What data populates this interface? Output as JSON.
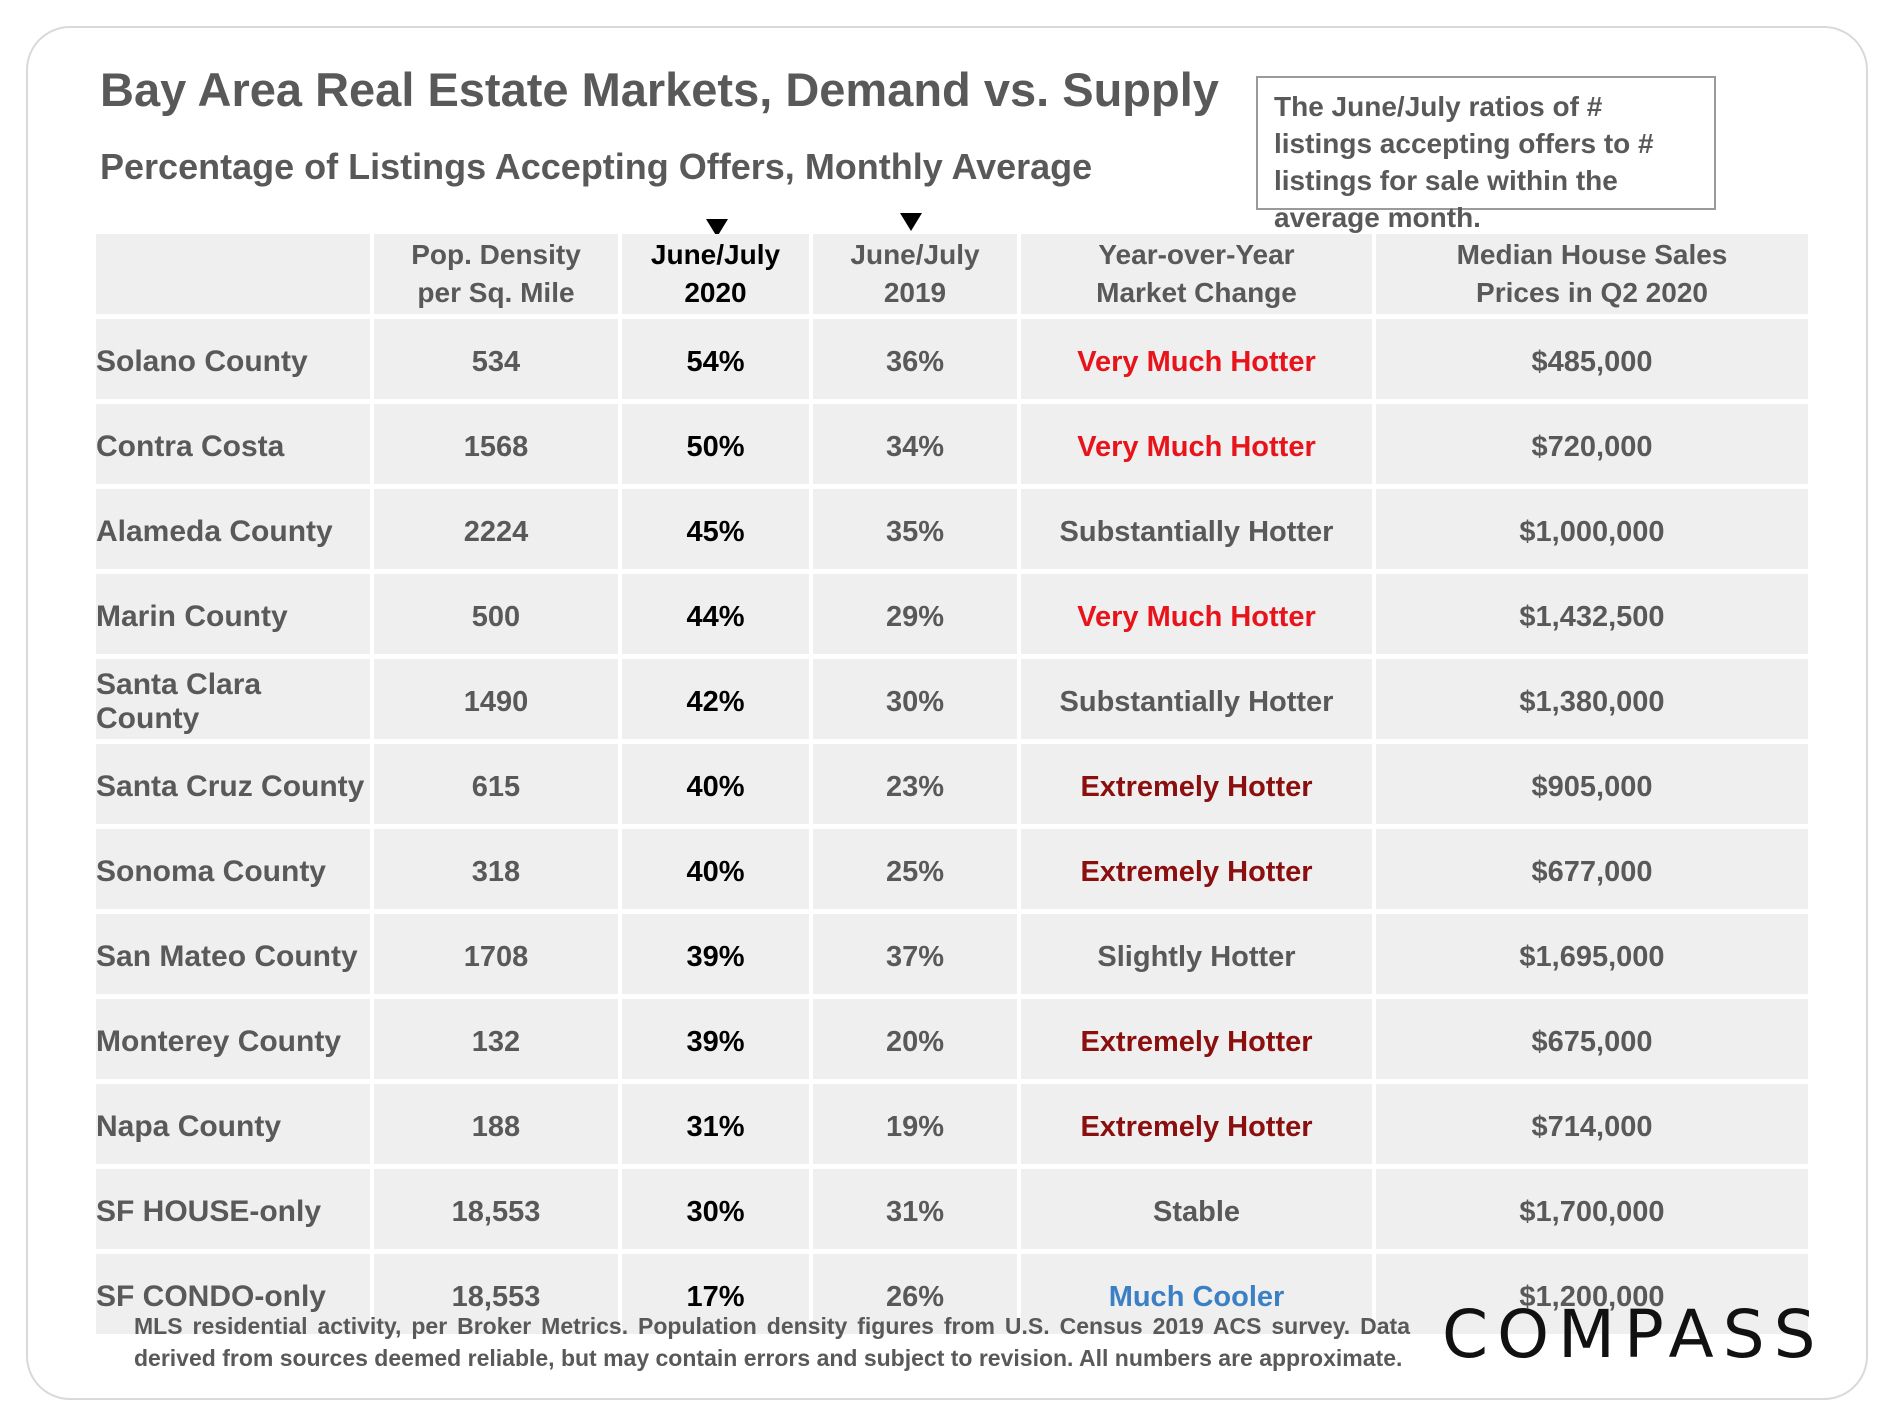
{
  "header": {
    "title": "Bay Area Real Estate Markets, Demand vs. Supply",
    "subtitle": "Percentage of Listings Accepting Offers, Monthly Average",
    "note": "The June/July ratios of # listings accepting offers to # listings for sale within the average month."
  },
  "table": {
    "columns": [
      {
        "line1": "",
        "line2": ""
      },
      {
        "line1": "Pop. Density",
        "line2": "per Sq. Mile"
      },
      {
        "line1": "June/July",
        "line2": "2020"
      },
      {
        "line1": "June/July",
        "line2": "2019"
      },
      {
        "line1": "Year-over-Year",
        "line2": "Market Change"
      },
      {
        "line1": "Median House Sales",
        "line2": "Prices in Q2 2020"
      }
    ],
    "rows": [
      {
        "county": "Solano County",
        "density": "534",
        "y2020": "54%",
        "y2019": "36%",
        "change": "Very Much Hotter",
        "price": "$485,000"
      },
      {
        "county": "Contra Costa",
        "density": "1568",
        "y2020": "50%",
        "y2019": "34%",
        "change": "Very Much Hotter",
        "price": "$720,000"
      },
      {
        "county": "Alameda County",
        "density": "2224",
        "y2020": "45%",
        "y2019": "35%",
        "change": "Substantially Hotter",
        "price": "$1,000,000"
      },
      {
        "county": "Marin County",
        "density": "500",
        "y2020": "44%",
        "y2019": "29%",
        "change": "Very Much Hotter",
        "price": "$1,432,500"
      },
      {
        "county": "Santa Clara County",
        "density": "1490",
        "y2020": "42%",
        "y2019": "30%",
        "change": "Substantially Hotter",
        "price": "$1,380,000"
      },
      {
        "county": "Santa Cruz County",
        "density": "615",
        "y2020": "40%",
        "y2019": "23%",
        "change": "Extremely Hotter",
        "price": "$905,000"
      },
      {
        "county": "Sonoma County",
        "density": "318",
        "y2020": "40%",
        "y2019": "25%",
        "change": "Extremely Hotter",
        "price": "$677,000"
      },
      {
        "county": "San Mateo County",
        "density": "1708",
        "y2020": "39%",
        "y2019": "37%",
        "change": "Slightly Hotter",
        "price": "$1,695,000"
      },
      {
        "county": "Monterey County",
        "density": "132",
        "y2020": "39%",
        "y2019": "20%",
        "change": "Extremely Hotter",
        "price": "$675,000"
      },
      {
        "county": "Napa County",
        "density": "188",
        "y2020": "31%",
        "y2019": "19%",
        "change": "Extremely Hotter",
        "price": "$714,000"
      },
      {
        "county": "SF HOUSE-only",
        "density": "18,553",
        "y2020": "30%",
        "y2019": "31%",
        "change": "Stable",
        "price": "$1,700,000"
      },
      {
        "county": "SF CONDO-only",
        "density": "18,553",
        "y2020": "17%",
        "y2019": "26%",
        "change": "Much Cooler",
        "price": "$1,200,000"
      }
    ]
  },
  "change_colors": {
    "Very Much Hotter": "#e8141b",
    "Extremely Hotter": "#8b0f0f",
    "Much Cooler": "#3b7fc4",
    "Substantially Hotter": "#595959",
    "Slightly Hotter": "#595959",
    "Stable": "#595959"
  },
  "footer": {
    "note": "MLS residential activity, per Broker Metrics. Population density figures from U.S. Census 2019 ACS survey. Data derived from sources deemed reliable, but may contain errors and subject to revision.  All numbers are approximate.",
    "logo": "COMPASS"
  }
}
